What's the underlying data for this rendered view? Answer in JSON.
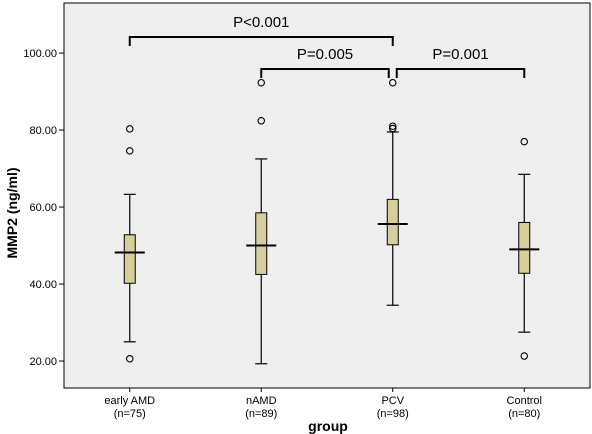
{
  "chart_data": {
    "type": "box",
    "title": "",
    "xlabel": "group",
    "ylabel": "MMP2 (ng/ml)",
    "ylim": [
      13,
      113
    ],
    "yticks": [
      "20.00",
      "40.00",
      "60.00",
      "80.00",
      "100.00"
    ],
    "ytick_values": [
      20,
      40,
      60,
      80,
      100
    ],
    "grid": false,
    "box_color": "#d6cf9c",
    "categories": [
      {
        "label": "early AMD",
        "n_label": "(n=75)"
      },
      {
        "label": "nAMD",
        "n_label": "(n=89)"
      },
      {
        "label": "PCV",
        "n_label": "(n=98)"
      },
      {
        "label": "Control",
        "n_label": "(n=80)"
      }
    ],
    "boxes": [
      {
        "whisker_low": 25.0,
        "q1": 40.2,
        "median": 48.2,
        "q3": 52.8,
        "whisker_high": 63.3,
        "outliers": [
          80.3,
          74.6,
          20.6
        ]
      },
      {
        "whisker_low": 19.3,
        "q1": 42.5,
        "median": 50.0,
        "q3": 58.5,
        "whisker_high": 72.5,
        "outliers": [
          92.3,
          82.4
        ]
      },
      {
        "whisker_low": 34.5,
        "q1": 50.2,
        "median": 55.6,
        "q3": 62.0,
        "whisker_high": 79.5,
        "outliers": [
          92.3,
          81.0,
          80.4
        ]
      },
      {
        "whisker_low": 27.5,
        "q1": 42.8,
        "median": 49.0,
        "q3": 56.0,
        "whisker_high": 68.5,
        "outliers": [
          77.0,
          21.3
        ]
      }
    ],
    "annotations": [
      {
        "from": 0,
        "to": 2,
        "text": "P<0.001",
        "level": 1
      },
      {
        "from": 1,
        "to": 2,
        "text": "P=0.005",
        "level": 0
      },
      {
        "from": 2,
        "to": 3,
        "text": "P=0.001",
        "level": 0
      }
    ]
  }
}
